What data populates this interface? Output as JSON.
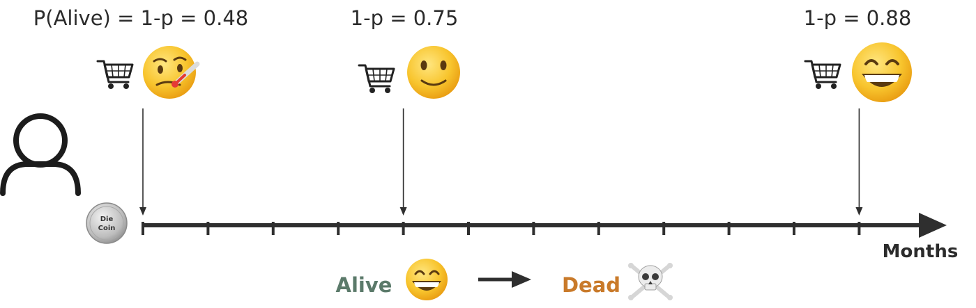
{
  "events": [
    {
      "probability_label": "P(Alive) = 1-p = 0.48",
      "probability": 0.48,
      "cart_icon": "shopping-cart-icon",
      "emoji_icon": "sick-thermometer-face-icon",
      "month": 0
    },
    {
      "probability_label": "1-p = 0.75",
      "probability": 0.75,
      "cart_icon": "shopping-cart-icon",
      "emoji_icon": "slightly-smiling-face-icon",
      "month": 4
    },
    {
      "probability_label": "1-p = 0.88",
      "probability": 0.88,
      "cart_icon": "shopping-cart-icon",
      "emoji_icon": "grinning-face-icon",
      "month": 11
    }
  ],
  "timeline": {
    "axis_label": "Months",
    "tick_count": 12,
    "coin_label_line1": "Die",
    "coin_label_line2": "Coin"
  },
  "legend": {
    "alive_label": "Alive",
    "alive_icon": "grinning-face-icon",
    "arrow_icon": "right-arrow-icon",
    "dead_label": "Dead",
    "dead_icon": "skull-crossbones-icon"
  },
  "colors": {
    "axis": "#2f2f2f",
    "alive": "#5b7a6a",
    "dead": "#c97a2a",
    "emoji_yellow": "#f6c02c"
  },
  "customer_icon": "user-outline-icon"
}
